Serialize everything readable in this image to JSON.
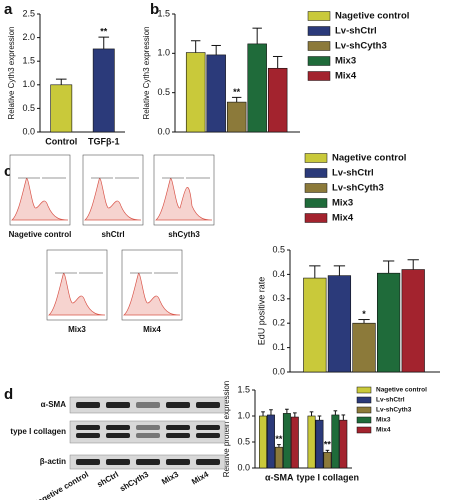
{
  "panel_labels": [
    "a",
    "b",
    "c",
    "d"
  ],
  "chart_data": [
    {
      "type": "bar",
      "ylabel": "Relative Cyth3 expression",
      "categories": [
        "Control",
        "TGFβ-1"
      ],
      "values": [
        1.0,
        1.76
      ],
      "errors": [
        0.12,
        0.25
      ],
      "colors": [
        "#c9c93a",
        "#2b3a7a"
      ],
      "ylim": [
        0,
        2.5
      ],
      "yticks": [
        {
          "value": 0,
          "label": "0.0"
        },
        {
          "value": 0.5,
          "label": "0.5"
        },
        {
          "value": 1,
          "label": "1.0"
        },
        {
          "value": 1.5,
          "label": "1.5"
        },
        {
          "value": 2,
          "label": "2.0"
        },
        {
          "value": 2.5,
          "label": "2.5"
        }
      ],
      "annotations": [
        {
          "text": "**",
          "category": 1
        }
      ]
    },
    {
      "type": "bar",
      "ylabel": "Relative Cyth3 expression",
      "categories": [
        null
      ],
      "series": [
        {
          "name": "Nagetive control",
          "color": "#c9c93a",
          "values": [
            1.01
          ],
          "errors": [
            0.15
          ]
        },
        {
          "name": "Lv-shCtrl",
          "color": "#2b3a7a",
          "values": [
            0.98
          ],
          "errors": [
            0.12
          ]
        },
        {
          "name": "Lv-shCyth3",
          "color": "#8c7a3a",
          "values": [
            0.38
          ],
          "errors": [
            0.06
          ]
        },
        {
          "name": "Mix3",
          "color": "#1f6b3a",
          "values": [
            1.12
          ],
          "errors": [
            0.2
          ]
        },
        {
          "name": "Mix4",
          "color": "#a3232e",
          "values": [
            0.81
          ],
          "errors": [
            0.15
          ]
        }
      ],
      "ylim": [
        0,
        1.5
      ],
      "yticks": [
        {
          "value": 0,
          "label": "0.0"
        },
        {
          "value": 0.5,
          "label": "0.5"
        },
        {
          "value": 1,
          "label": "1.0"
        },
        {
          "value": 1.5,
          "label": "1.5"
        }
      ],
      "annotations": [
        {
          "text": "**",
          "series": 2,
          "category": 0
        }
      ]
    },
    {
      "type": "bar",
      "ylabel": "EdU positive rate",
      "categories": [
        null
      ],
      "series": [
        {
          "name": "Nagetive control",
          "color": "#c9c93a",
          "values": [
            0.385
          ],
          "errors": [
            0.05
          ]
        },
        {
          "name": "Lv-shCtrl",
          "color": "#2b3a7a",
          "values": [
            0.395
          ],
          "errors": [
            0.04
          ]
        },
        {
          "name": "Lv-shCyth3",
          "color": "#8c7a3a",
          "values": [
            0.2
          ],
          "errors": [
            0.015
          ]
        },
        {
          "name": "Mix3",
          "color": "#1f6b3a",
          "values": [
            0.405
          ],
          "errors": [
            0.05
          ]
        },
        {
          "name": "Mix4",
          "color": "#a3232e",
          "values": [
            0.42
          ],
          "errors": [
            0.04
          ]
        }
      ],
      "ylim": [
        0,
        0.5
      ],
      "yticks": [
        {
          "value": 0,
          "label": "0.0"
        },
        0.1,
        0.2,
        0.3,
        0.4,
        0.5
      ],
      "annotations": [
        {
          "text": "*",
          "series": 2,
          "category": 0
        }
      ]
    },
    {
      "type": "bar",
      "ylabel": "Relative protein expression",
      "categories": [
        "α-SMA",
        "type I collagen"
      ],
      "series": [
        {
          "name": "Nagetive control",
          "color": "#c9c93a",
          "values": [
            1.0,
            1.0
          ],
          "errors": [
            0.08,
            0.08
          ]
        },
        {
          "name": "Lv-shCtrl",
          "color": "#2b3a7a",
          "values": [
            1.02,
            0.92
          ],
          "errors": [
            0.1,
            0.08
          ]
        },
        {
          "name": "Lv-shCyth3",
          "color": "#8c7a3a",
          "values": [
            0.4,
            0.3
          ],
          "errors": [
            0.05,
            0.04
          ]
        },
        {
          "name": "Mix3",
          "color": "#1f6b3a",
          "values": [
            1.05,
            1.02
          ],
          "errors": [
            0.08,
            0.08
          ]
        },
        {
          "name": "Mix4",
          "color": "#a3232e",
          "values": [
            0.98,
            0.92
          ],
          "errors": [
            0.08,
            0.1
          ]
        }
      ],
      "ylim": [
        0,
        1.5
      ],
      "yticks": [
        {
          "value": 0,
          "label": "0.0"
        },
        {
          "value": 0.5,
          "label": "0.5"
        },
        {
          "value": 1,
          "label": "1.0"
        },
        {
          "value": 1.5,
          "label": "1.5"
        }
      ],
      "annotations": [
        {
          "text": "**",
          "series": 2,
          "category": 0
        },
        {
          "text": "**",
          "series": 2,
          "category": 1
        }
      ]
    }
  ],
  "flow": {
    "labels": [
      "Nagetive control",
      "shCtrl",
      "shCyth3",
      "Mix3",
      "Mix4"
    ]
  },
  "blot": {
    "rows": [
      "α-SMA",
      "type I collagen",
      "β-actin"
    ],
    "lanes": [
      "Nagetive control",
      "shCtrl",
      "shCyth3",
      "Mix3",
      "Mix4"
    ]
  }
}
